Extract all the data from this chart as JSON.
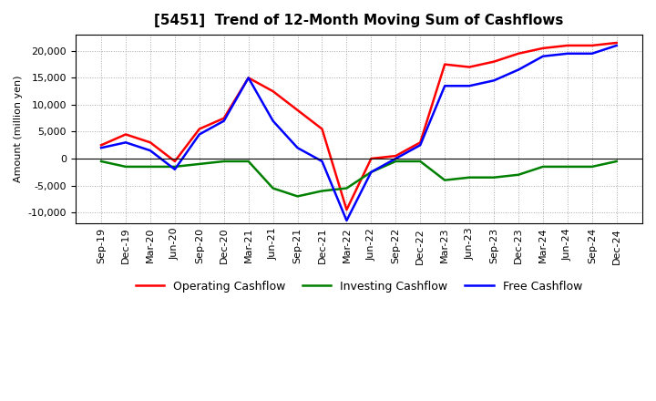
{
  "title": "[5451]  Trend of 12-Month Moving Sum of Cashflows",
  "ylabel": "Amount (million yen)",
  "ylim": [
    -12000,
    23000
  ],
  "yticks": [
    -10000,
    -5000,
    0,
    5000,
    10000,
    15000,
    20000
  ],
  "x_labels": [
    "Sep-19",
    "Dec-19",
    "Mar-20",
    "Jun-20",
    "Sep-20",
    "Dec-20",
    "Mar-21",
    "Jun-21",
    "Sep-21",
    "Dec-21",
    "Mar-22",
    "Jun-22",
    "Sep-22",
    "Dec-22",
    "Mar-23",
    "Jun-23",
    "Sep-23",
    "Dec-23",
    "Mar-24",
    "Jun-24",
    "Sep-24",
    "Dec-24"
  ],
  "operating_cashflow": [
    2500,
    4500,
    3000,
    -500,
    5500,
    7500,
    15000,
    12500,
    9000,
    5500,
    -9500,
    0,
    500,
    3000,
    17500,
    17000,
    18000,
    19500,
    20500,
    21000,
    21000,
    21500
  ],
  "investing_cashflow": [
    -500,
    -1500,
    -1500,
    -1500,
    -1000,
    -500,
    -500,
    -5500,
    -7000,
    -6000,
    -5500,
    -2500,
    -500,
    -500,
    -4000,
    -3500,
    -3500,
    -3000,
    -1500,
    -1500,
    -1500,
    -500
  ],
  "free_cashflow": [
    2000,
    3000,
    1500,
    -2000,
    4500,
    7000,
    15000,
    7000,
    2000,
    -500,
    -11500,
    -2500,
    0,
    2500,
    13500,
    13500,
    14500,
    16500,
    19000,
    19500,
    19500,
    21000
  ],
  "operating_color": "#ff0000",
  "investing_color": "#008000",
  "free_color": "#0000ff",
  "background_color": "#ffffff",
  "grid_color": "#aaaaaa",
  "title_fontsize": 11,
  "legend_fontsize": 9,
  "axis_fontsize": 8
}
